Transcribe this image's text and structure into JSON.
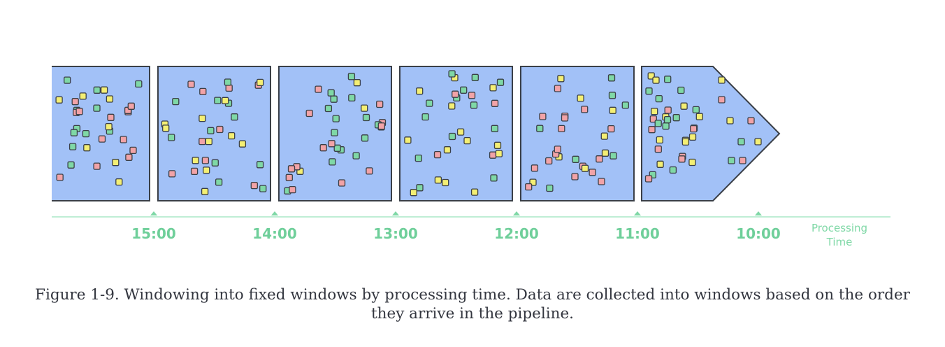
{
  "axis": {
    "ticks": [
      "15:00",
      "14:00",
      "13:00",
      "12:00",
      "11:00",
      "10:00"
    ],
    "label_line1": "Processing",
    "label_line2": "Time"
  },
  "colors": {
    "window_fill": "#a2c1f7",
    "window_stroke": "#3a3f47",
    "axis_line": "#bfeed5",
    "tick_text": "#6fcf9a",
    "datum_red": "#f2a3a7",
    "datum_yellow": "#f4ef74",
    "datum_green": "#7fd8a6",
    "datum_stroke": "#3a3f47"
  },
  "caption": "Figure 1-9. Windowing into fixed windows by processing time. Data are collected into windows based on the order they arrive in the pipeline."
}
